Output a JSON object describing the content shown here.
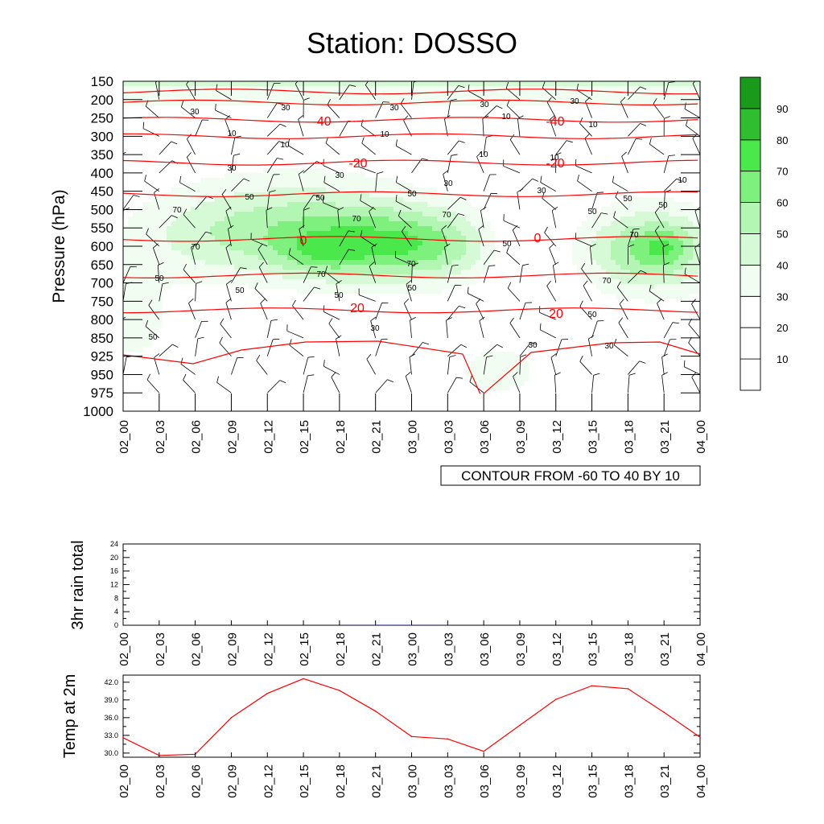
{
  "title": "Station: DOSSO",
  "time_labels": [
    "02_00",
    "02_03",
    "02_06",
    "02_09",
    "02_12",
    "02_15",
    "02_18",
    "02_21",
    "03_00",
    "03_03",
    "03_06",
    "03_09",
    "03_12",
    "03_15",
    "03_18",
    "03_21",
    "04_00"
  ],
  "colors": {
    "temp_line": "#ff0000",
    "rain_bar": "#000080",
    "contour_line": "#000000",
    "rh_fill_high": "#1a9a1a"
  },
  "chart_data": [
    {
      "type": "heatmap",
      "name": "relative-humidity-cross-section",
      "title": "",
      "xlabel": "",
      "ylabel": "Pressure (hPa)",
      "yticks": [
        150,
        200,
        250,
        300,
        350,
        400,
        450,
        500,
        550,
        600,
        650,
        700,
        750,
        800,
        850,
        925,
        950,
        975,
        1000
      ],
      "ylim": [
        1000,
        150
      ],
      "y_reversed": true,
      "colorbar": {
        "levels": [
          10,
          20,
          30,
          40,
          50,
          60,
          70,
          80,
          90
        ],
        "colors": [
          "#ffffff",
          "#ffffff",
          "#f1fdf1",
          "#d6fad6",
          "#b3f5b3",
          "#7ef07e",
          "#4be84b",
          "#2fbe2f",
          "#1a9a1a"
        ]
      },
      "rh_contour_labels": [
        10,
        30,
        50,
        70
      ],
      "temperature_contours": [
        {
          "value": -40,
          "pressure": 255
        },
        {
          "value": -20,
          "pressure": 372
        },
        {
          "value": 0,
          "pressure": 580
        },
        {
          "value": 20,
          "pressure": 775
        }
      ],
      "info_box": "CONTOUR FROM -60 TO 40 BY 10"
    },
    {
      "type": "bar",
      "name": "rain",
      "ylabel": "3hr rain total",
      "yticks": [
        0,
        4,
        8,
        12,
        16,
        20,
        24
      ],
      "ylim": [
        0,
        24
      ],
      "x": [
        "02_00",
        "02_03",
        "02_06",
        "02_09",
        "02_12",
        "02_15",
        "02_18",
        "02_21",
        "03_00",
        "03_03",
        "03_06",
        "03_09",
        "03_12",
        "03_15",
        "03_18",
        "03_21",
        "04_00"
      ],
      "values": [
        0,
        0,
        0,
        0,
        0,
        0,
        0.05,
        0.1,
        0.05,
        0,
        0,
        0,
        0,
        0,
        0,
        0,
        0
      ]
    },
    {
      "type": "line",
      "name": "temp-2m",
      "ylabel": "Temp at 2m",
      "yticks": [
        "30.0",
        "33.0",
        "36.0",
        "39.0",
        "42.0"
      ],
      "ylim": [
        29.3,
        43.2
      ],
      "x": [
        "02_00",
        "02_03",
        "02_06",
        "02_09",
        "02_12",
        "02_15",
        "02_18",
        "02_21",
        "03_00",
        "03_03",
        "03_06",
        "03_09",
        "03_12",
        "03_15",
        "03_18",
        "03_21",
        "04_00"
      ],
      "values": [
        32.6,
        29.6,
        29.8,
        36.0,
        40.1,
        42.6,
        40.6,
        37.1,
        32.8,
        32.4,
        30.3,
        34.7,
        39.1,
        41.4,
        40.9,
        36.9,
        32.7
      ]
    }
  ]
}
